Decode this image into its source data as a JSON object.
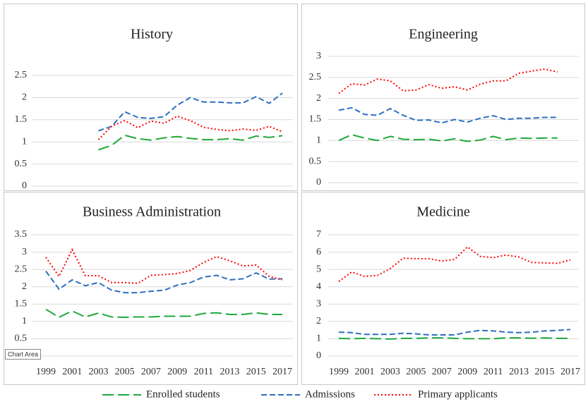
{
  "tooltip": "Chart Area",
  "chart_data": [
    {
      "type": "line",
      "title": "History",
      "x": [
        1999,
        2000,
        2001,
        2002,
        2003,
        2004,
        2005,
        2006,
        2007,
        2008,
        2009,
        2010,
        2011,
        2012,
        2013,
        2014,
        2015,
        2016,
        2017
      ],
      "xlim": [
        1999,
        2017
      ],
      "ylim": [
        0,
        2.5
      ],
      "yticks": [
        0,
        0.5,
        1,
        1.5,
        2,
        2.5
      ],
      "grid": true,
      "series": [
        {
          "name": "Enrolled students",
          "color": "#1fa83c",
          "values": [
            null,
            null,
            null,
            null,
            0.82,
            0.92,
            1.15,
            1.07,
            1.04,
            1.09,
            1.12,
            1.08,
            1.05,
            1.05,
            1.07,
            1.04,
            1.13,
            1.1,
            1.14
          ]
        },
        {
          "name": "Admissions",
          "color": "#2e6fc0",
          "values": [
            null,
            null,
            null,
            null,
            1.25,
            1.35,
            1.68,
            1.55,
            1.53,
            1.57,
            1.83,
            2.0,
            1.9,
            1.9,
            1.88,
            1.88,
            2.02,
            1.87,
            2.1
          ]
        },
        {
          "name": "Primary applicants",
          "color": "#ff0000",
          "values": [
            null,
            null,
            null,
            null,
            1.05,
            1.35,
            1.48,
            1.32,
            1.47,
            1.42,
            1.58,
            1.48,
            1.33,
            1.28,
            1.25,
            1.29,
            1.26,
            1.35,
            1.23
          ]
        }
      ]
    },
    {
      "type": "line",
      "title": "Engineering",
      "x": [
        1999,
        2000,
        2001,
        2002,
        2003,
        2004,
        2005,
        2006,
        2007,
        2008,
        2009,
        2010,
        2011,
        2012,
        2013,
        2014,
        2015,
        2016,
        2017
      ],
      "xlim": [
        1999,
        2017
      ],
      "ylim": [
        0,
        3
      ],
      "yticks": [
        0,
        0.5,
        1,
        1.5,
        2,
        2.5,
        3
      ],
      "grid": true,
      "series": [
        {
          "name": "Enrolled students",
          "color": "#1fa83c",
          "values": [
            1.0,
            1.14,
            1.06,
            1.0,
            1.1,
            1.03,
            1.02,
            1.03,
            0.99,
            1.04,
            0.98,
            1.01,
            1.1,
            1.02,
            1.06,
            1.05,
            1.06,
            1.06,
            null
          ]
        },
        {
          "name": "Admissions",
          "color": "#2e6fc0",
          "values": [
            1.72,
            1.78,
            1.62,
            1.6,
            1.76,
            1.6,
            1.48,
            1.49,
            1.42,
            1.5,
            1.44,
            1.53,
            1.59,
            1.5,
            1.53,
            1.53,
            1.55,
            1.55,
            null
          ]
        },
        {
          "name": "Primary applicants",
          "color": "#ff0000",
          "values": [
            2.12,
            2.35,
            2.32,
            2.46,
            2.42,
            2.18,
            2.2,
            2.33,
            2.24,
            2.28,
            2.2,
            2.34,
            2.42,
            2.42,
            2.6,
            2.65,
            2.7,
            2.63,
            null
          ]
        }
      ]
    },
    {
      "type": "line",
      "title": "Business Administration",
      "x": [
        1999,
        2000,
        2001,
        2002,
        2003,
        2004,
        2005,
        2006,
        2007,
        2008,
        2009,
        2010,
        2011,
        2012,
        2013,
        2014,
        2015,
        2016,
        2017
      ],
      "xlim": [
        1999,
        2017
      ],
      "xticks": [
        1999,
        2001,
        2003,
        2005,
        2007,
        2009,
        2011,
        2013,
        2015,
        2017
      ],
      "ylim": [
        0,
        3.5
      ],
      "yticks": [
        0,
        0.5,
        1,
        1.5,
        2,
        2.5,
        3,
        3.5
      ],
      "grid": true,
      "series": [
        {
          "name": "Enrolled students",
          "color": "#1fa83c",
          "values": [
            1.35,
            1.12,
            1.3,
            1.13,
            1.24,
            1.13,
            1.12,
            1.13,
            1.13,
            1.15,
            1.15,
            1.15,
            1.23,
            1.25,
            1.2,
            1.2,
            1.25,
            1.2,
            1.2
          ]
        },
        {
          "name": "Admissions",
          "color": "#2e6fc0",
          "values": [
            2.45,
            1.93,
            2.2,
            2.03,
            2.12,
            1.9,
            1.83,
            1.83,
            1.87,
            1.9,
            2.05,
            2.12,
            2.28,
            2.33,
            2.2,
            2.23,
            2.4,
            2.22,
            2.23
          ]
        },
        {
          "name": "Primary applicants",
          "color": "#ff0000",
          "values": [
            2.85,
            2.3,
            3.07,
            2.32,
            2.32,
            2.12,
            2.12,
            2.1,
            2.33,
            2.35,
            2.38,
            2.47,
            2.7,
            2.87,
            2.75,
            2.6,
            2.63,
            2.3,
            2.2
          ]
        }
      ]
    },
    {
      "type": "line",
      "title": "Medicine",
      "x": [
        1999,
        2000,
        2001,
        2002,
        2003,
        2004,
        2005,
        2006,
        2007,
        2008,
        2009,
        2010,
        2011,
        2012,
        2013,
        2014,
        2015,
        2016,
        2017
      ],
      "xlim": [
        1999,
        2017
      ],
      "xticks": [
        1999,
        2001,
        2003,
        2005,
        2007,
        2009,
        2011,
        2013,
        2015,
        2017
      ],
      "ylim": [
        0,
        7
      ],
      "yticks": [
        0,
        1,
        2,
        3,
        4,
        5,
        6,
        7
      ],
      "grid": true,
      "series": [
        {
          "name": "Enrolled students",
          "color": "#1fa83c",
          "values": [
            1.02,
            1.0,
            1.02,
            1.0,
            0.98,
            1.02,
            1.02,
            1.05,
            1.05,
            1.02,
            1.0,
            1.0,
            1.0,
            1.05,
            1.05,
            1.03,
            1.05,
            1.02,
            1.02
          ]
        },
        {
          "name": "Admissions",
          "color": "#2e6fc0",
          "values": [
            1.38,
            1.35,
            1.25,
            1.25,
            1.25,
            1.32,
            1.28,
            1.22,
            1.22,
            1.22,
            1.38,
            1.48,
            1.45,
            1.38,
            1.35,
            1.38,
            1.45,
            1.48,
            1.53
          ]
        },
        {
          "name": "Primary applicants",
          "color": "#ff0000",
          "values": [
            4.3,
            4.85,
            4.6,
            4.65,
            5.05,
            5.65,
            5.62,
            5.62,
            5.48,
            5.58,
            6.3,
            5.75,
            5.68,
            5.83,
            5.72,
            5.4,
            5.38,
            5.35,
            5.55
          ]
        }
      ]
    }
  ]
}
